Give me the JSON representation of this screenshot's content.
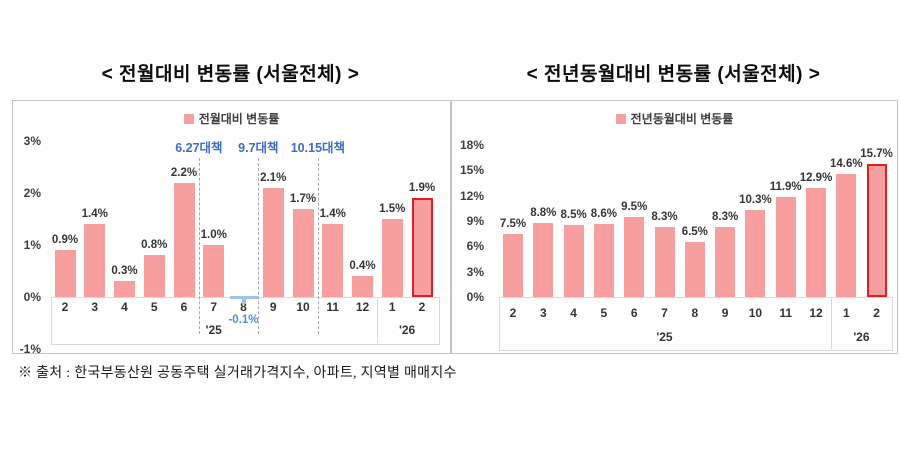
{
  "footer": {
    "source_note": "※ 출처 : 한국부동산원 공동주택 실거래가격지수, 아파트, 지역별 매매지수"
  },
  "colors": {
    "bar_fill": "#F79F9F",
    "highlight_border": "#E02020",
    "negative_bar": "#9DC3E6",
    "negative_label": "#4D8FD6",
    "annotation_blue": "#3E6DC6"
  },
  "chart_data": [
    {
      "type": "bar",
      "title": "< 전월대비 변동률 (서울전체) >",
      "legend": "전월대비 변동률",
      "legend_position": "top",
      "grid": false,
      "categories": [
        "2",
        "3",
        "4",
        "5",
        "6",
        "7",
        "8",
        "9",
        "10",
        "11",
        "12",
        "1",
        "2"
      ],
      "values": [
        0.9,
        1.4,
        0.3,
        0.8,
        2.2,
        1.0,
        -0.1,
        2.1,
        1.7,
        1.4,
        0.4,
        1.5,
        1.9
      ],
      "labels": [
        "0.9%",
        "1.4%",
        "0.3%",
        "0.8%",
        "2.2%",
        "1.0%",
        "-0.1%",
        "2.1%",
        "1.7%",
        "1.4%",
        "0.4%",
        "1.5%",
        "1.9%"
      ],
      "ylim": [
        -1,
        3
      ],
      "yticks": [
        3,
        2,
        1,
        0,
        -1
      ],
      "year_groups": [
        {
          "label": "'25",
          "span": [
            0,
            10
          ]
        },
        {
          "label": "'26",
          "span": [
            11,
            12
          ]
        }
      ],
      "annotations": [
        {
          "label": "6.27대책",
          "after_index": 4
        },
        {
          "label": "9.7대책",
          "after_index": 6
        },
        {
          "label": "10.15대책",
          "after_index": 8
        }
      ],
      "highlight_index": 12
    },
    {
      "type": "bar",
      "title": "< 전년동월대비 변동률 (서울전체) >",
      "legend": "전년동월대비 변동률",
      "legend_position": "top",
      "grid": false,
      "categories": [
        "2",
        "3",
        "4",
        "5",
        "6",
        "7",
        "8",
        "9",
        "10",
        "11",
        "12",
        "1",
        "2"
      ],
      "values": [
        7.5,
        8.8,
        8.5,
        8.6,
        9.5,
        8.3,
        6.5,
        8.3,
        10.3,
        11.9,
        12.9,
        14.6,
        15.7
      ],
      "labels": [
        "7.5%",
        "8.8%",
        "8.5%",
        "8.6%",
        "9.5%",
        "8.3%",
        "6.5%",
        "8.3%",
        "10.3%",
        "11.9%",
        "12.9%",
        "14.6%",
        "15.7%"
      ],
      "ylim": [
        0,
        18
      ],
      "yticks": [
        18,
        15,
        12,
        9,
        6,
        3,
        0
      ],
      "year_groups": [
        {
          "label": "'25",
          "span": [
            0,
            10
          ]
        },
        {
          "label": "'26",
          "span": [
            11,
            12
          ]
        }
      ],
      "annotations": [],
      "highlight_index": 12
    }
  ]
}
